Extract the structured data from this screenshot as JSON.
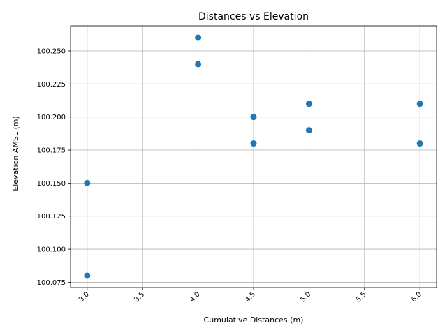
{
  "chart_data": {
    "type": "scatter",
    "title": "Distances vs Elevation",
    "xlabel": "Cumulative Distances (m)",
    "ylabel": "Elevation AMSL (m)",
    "xlim": [
      2.85,
      6.15
    ],
    "ylim": [
      100.071,
      100.269
    ],
    "xticks": [
      3.0,
      3.5,
      4.0,
      4.5,
      5.0,
      5.5,
      6.0
    ],
    "xtick_labels": [
      "3.0",
      "3.5",
      "4.0",
      "4.5",
      "5.0",
      "5.5",
      "6.0"
    ],
    "yticks": [
      100.075,
      100.1,
      100.125,
      100.15,
      100.175,
      100.2,
      100.225,
      100.25
    ],
    "ytick_labels": [
      "100.075",
      "100.100",
      "100.125",
      "100.150",
      "100.175",
      "100.200",
      "100.225",
      "100.250"
    ],
    "grid": true,
    "marker_color": "#1f77b4",
    "points": [
      {
        "x": 3.0,
        "y": 100.15
      },
      {
        "x": 3.0,
        "y": 100.08
      },
      {
        "x": 4.0,
        "y": 100.26
      },
      {
        "x": 4.0,
        "y": 100.24
      },
      {
        "x": 4.5,
        "y": 100.2
      },
      {
        "x": 4.5,
        "y": 100.18
      },
      {
        "x": 5.0,
        "y": 100.21
      },
      {
        "x": 5.0,
        "y": 100.19
      },
      {
        "x": 6.0,
        "y": 100.21
      },
      {
        "x": 6.0,
        "y": 100.18
      }
    ]
  }
}
